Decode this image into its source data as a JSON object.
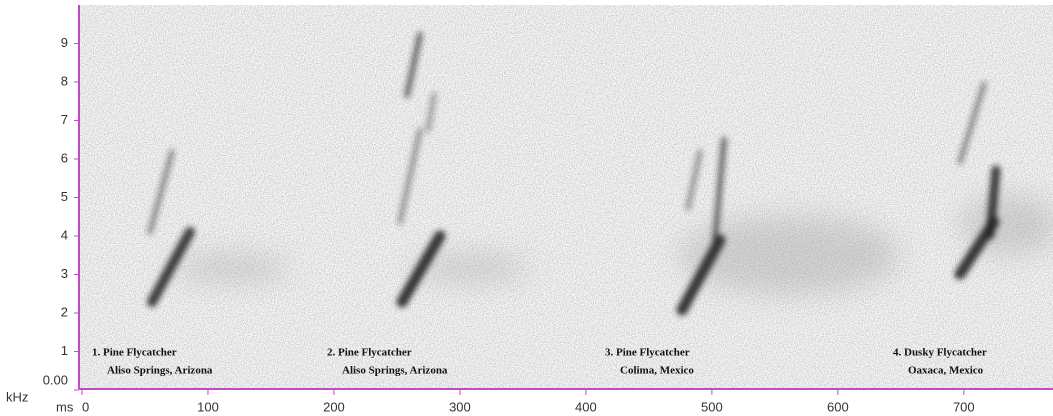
{
  "chart_data": {
    "type": "spectrogram",
    "xlabel": "ms",
    "ylabel": "kHz",
    "xlim": [
      0,
      770
    ],
    "ylim": [
      0,
      10
    ],
    "xticks": [
      0,
      100,
      200,
      300,
      400,
      500,
      600,
      700
    ],
    "yticks": [
      {
        "value": 0,
        "label": "0.00"
      },
      1,
      2,
      3,
      4,
      5,
      6,
      7,
      8,
      9
    ],
    "axis_color": "#c04ac8",
    "annotations": [
      {
        "title": "1. Pine Flycatcher",
        "place": "Aliso Springs, Arizona"
      },
      {
        "title": "2. Pine Flycatcher",
        "place": "Aliso Springs, Arizona"
      },
      {
        "title": "3. Pine Flycatcher",
        "place": "Colima, Mexico"
      },
      {
        "title": "4. Dusky Flycatcher",
        "place": "Oaxaca, Mexico"
      }
    ]
  }
}
